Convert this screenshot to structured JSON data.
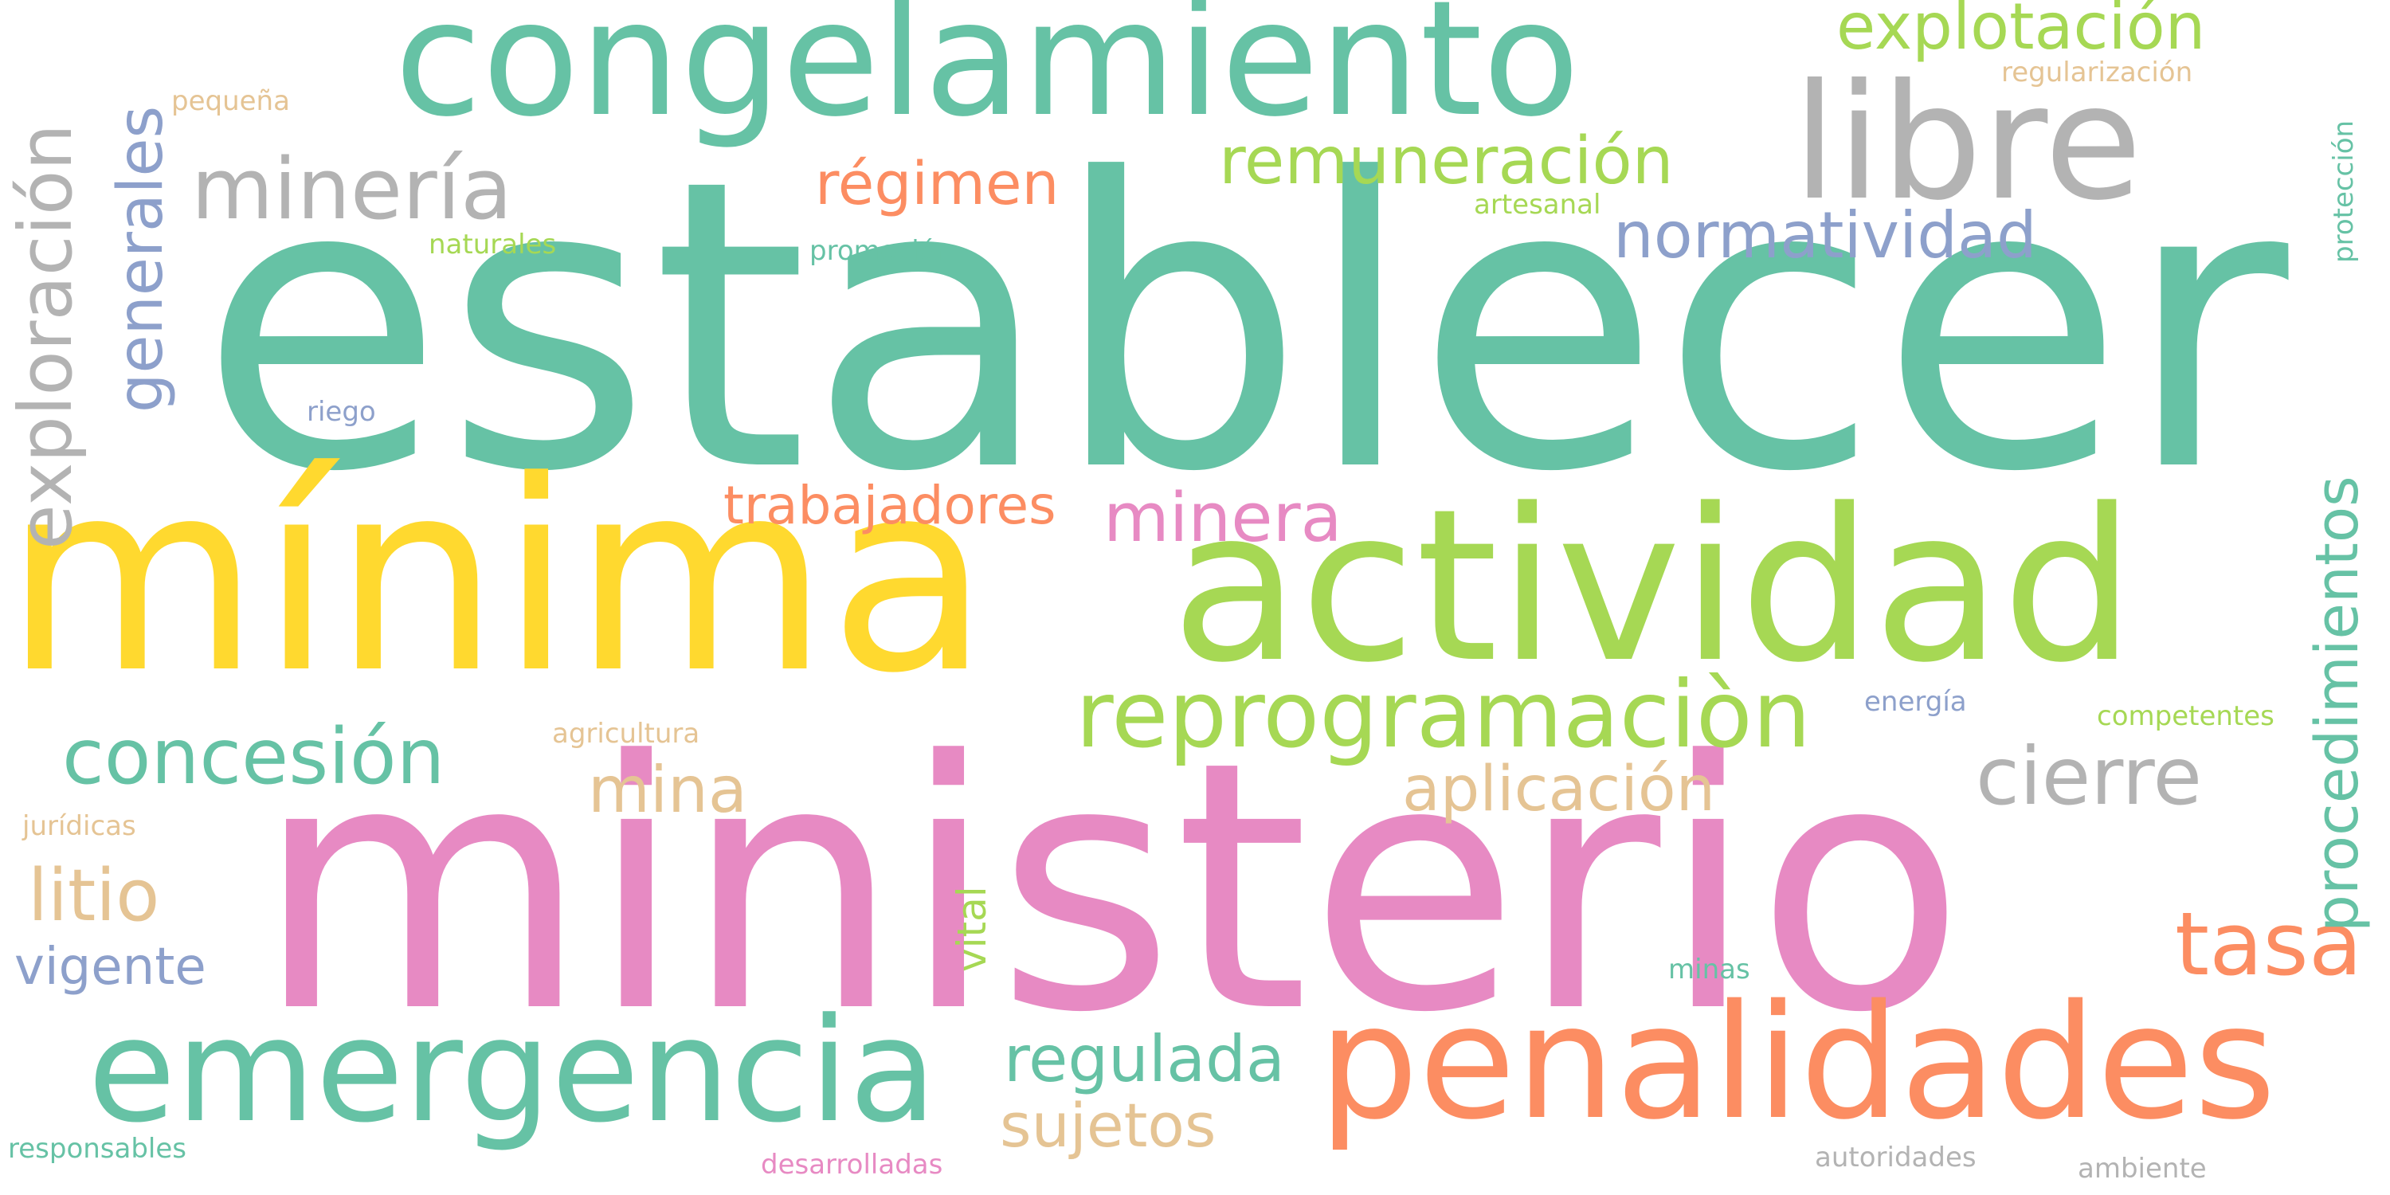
{
  "colors": {
    "teal": "#66c2a5",
    "pink": "#e78ac3",
    "yellow": "#ffd92f",
    "lime": "#a6d854",
    "orange": "#fc8d62",
    "gray": "#b3b3b3",
    "blue": "#8da0cb",
    "tan": "#e5c494"
  },
  "words": {
    "establecer": "establecer",
    "ministerio": "ministerio",
    "minima": "mínima",
    "actividad": "actividad",
    "congelamiento": "congelamiento",
    "penalidades": "penalidades",
    "emergencia": "emergencia",
    "libre": "libre",
    "reprogramacion": "reprogramaciòn",
    "mineria": "minería",
    "exploracion": "exploración",
    "explotacion": "explotación",
    "remuneracion": "remuneración",
    "normatividad": "normatividad",
    "concesion": "concesión",
    "procedimientos": "procedimientos",
    "generales": "generales",
    "regimen": "régimen",
    "trabajadores": "trabajadores",
    "minera": "minera",
    "cierre": "cierre",
    "aplicacion": "aplicación",
    "mina": "mina",
    "tasa": "tasa",
    "litio": "litio",
    "regulada": "regulada",
    "sujetos": "sujetos",
    "vigente": "vigente",
    "vital": "vital",
    "pequena": "pequeña",
    "regularizacion": "regularización",
    "proteccion": "protección",
    "artesanal": "artesanal",
    "naturales": "naturales",
    "promocion": "promoción",
    "riego": "riego",
    "agricultura": "agricultura",
    "energia": "energía",
    "competentes": "competentes",
    "juridicas": "jurídicas",
    "minas": "minas",
    "responsables": "responsables",
    "desarrolladas": "desarrolladas",
    "autoridades": "autoridades",
    "ambiente": "ambiente"
  }
}
